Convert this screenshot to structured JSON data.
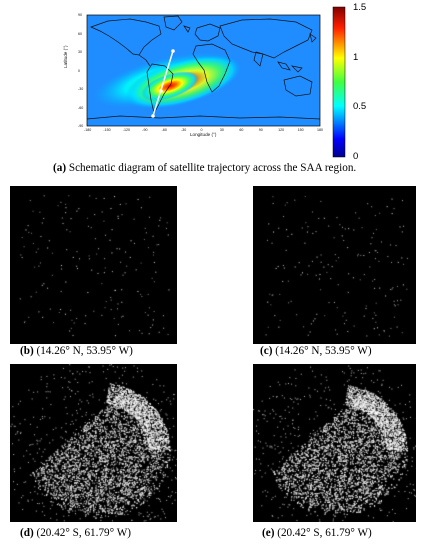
{
  "figure_a": {
    "xlabel": "Longitude (°)",
    "ylabel": "Latitude (°)",
    "x_ticks": [
      "-180",
      "-150",
      "-120",
      "-90",
      "-60",
      "-30",
      "0",
      "30",
      "60",
      "90",
      "120",
      "150",
      "180"
    ],
    "y_ticks": [
      "90",
      "60",
      "30",
      "0",
      "-30",
      "-60",
      "-90"
    ],
    "colorbar_ticks": [
      "1.5",
      "1",
      "0.5",
      "0"
    ],
    "colorbar_range": [
      0,
      1.5
    ],
    "colormap": "jet",
    "trajectory_color": "#ffffff",
    "caption_label": "(a)",
    "caption_text": " Schematic diagram of satellite trajectory across the SAA region."
  },
  "panels": [
    {
      "id": "b",
      "label": "(b)",
      "coords": " (14.26° N, 53.95° W)",
      "style": "sparse"
    },
    {
      "id": "c",
      "label": "(c)",
      "coords": " (14.26° N, 53.95° W)",
      "style": "sparse"
    },
    {
      "id": "d",
      "label": "(d)",
      "coords": " (20.42° S, 61.79° W)",
      "style": "dense"
    },
    {
      "id": "e",
      "label": "(e)",
      "coords": " (20.42° S, 61.79° W)",
      "style": "dense"
    }
  ]
}
